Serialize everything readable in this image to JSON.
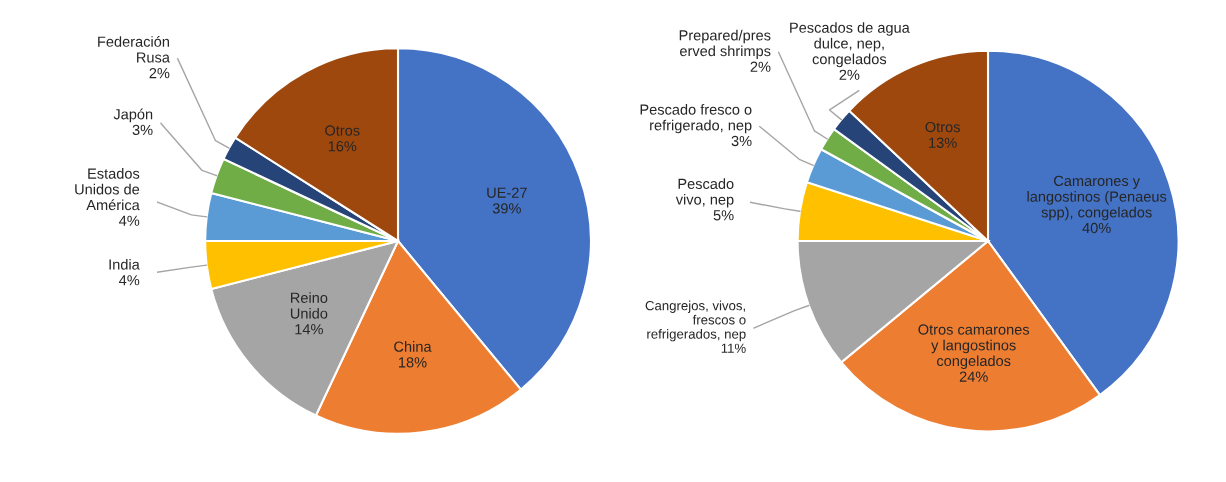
{
  "chart_data": [
    {
      "type": "pie",
      "categories": [
        "UE-27",
        "China",
        "Reino\nUnido",
        "India",
        "Estados\nUnidos de\nAmérica",
        "Japón",
        "Federación\nRusa",
        "Otros"
      ],
      "values": [
        39,
        18,
        14,
        4,
        4,
        3,
        2,
        16
      ],
      "value_labels": [
        "39%",
        "18%",
        "14%",
        "4%",
        "4%",
        "3%",
        "2%",
        "16%"
      ],
      "colors": [
        "#4472c4",
        "#ed7d31",
        "#a5a5a5",
        "#ffc000",
        "#5b9bd5",
        "#70ad47",
        "#264478",
        "#9e480e"
      ]
    },
    {
      "type": "pie",
      "categories": [
        "Camarones y\nlangostinos (Penaeus\nspp), congelados",
        "Otros camarones\ny langostinos\ncongelados",
        "Cangrejos, vivos,\nfrescos o\nrefrigerados, nep",
        "Pescado\nvivo, nep",
        "Pescado fresco o\nrefrigerado, nep",
        "Prepared/pres\nerved shrimps",
        "Pescados de agua\ndulce, nep,\ncongelados",
        "Otros"
      ],
      "values": [
        40,
        24,
        11,
        5,
        3,
        2,
        2,
        13
      ],
      "value_labels": [
        "40%",
        "24%",
        "11%",
        "5%",
        "3%",
        "2%",
        "2%",
        "13%"
      ],
      "colors": [
        "#4472c4",
        "#ed7d31",
        "#a5a5a5",
        "#ffc000",
        "#5b9bd5",
        "#70ad47",
        "#264478",
        "#9e480e"
      ]
    }
  ]
}
